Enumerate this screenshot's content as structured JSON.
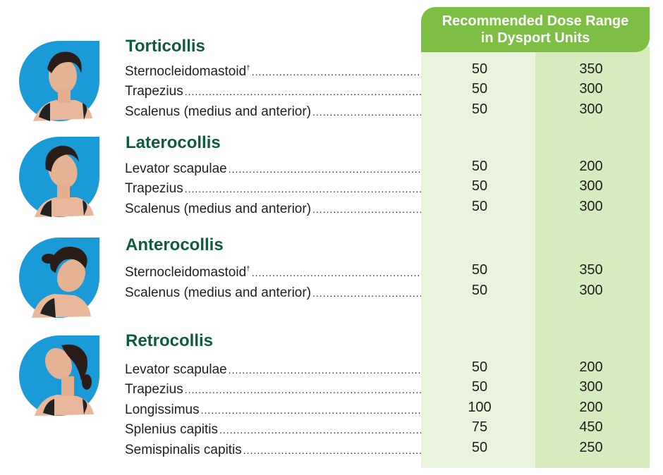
{
  "header": {
    "line1": "Recommended Dose Range",
    "line2": "in Dysport Units"
  },
  "sections": [
    {
      "title": "Torticollis",
      "rows": [
        {
          "muscle": "Sternocleidomastoid",
          "mark": "†",
          "min": "50",
          "max": "350"
        },
        {
          "muscle": "Trapezius",
          "min": "50",
          "max": "300"
        },
        {
          "muscle": "Scalenus (medius and anterior)",
          "min": "50",
          "max": "300"
        }
      ]
    },
    {
      "title": "Laterocollis",
      "rows": [
        {
          "muscle": "Levator scapulae ",
          "min": "50",
          "max": "200"
        },
        {
          "muscle": "Trapezius",
          "min": "50",
          "max": "300"
        },
        {
          "muscle": "Scalenus (medius and anterior) ",
          "min": "50",
          "max": "300"
        }
      ]
    },
    {
      "title": "Anterocollis",
      "rows": [
        {
          "muscle": "Sternocleidomastoid",
          "mark": "†",
          "min": "50",
          "max": "350"
        },
        {
          "muscle": "Scalenus (medius and anterior)",
          "min": "50",
          "max": "300"
        }
      ]
    },
    {
      "title": "Retrocollis",
      "rows": [
        {
          "muscle": "Levator scapulae ",
          "min": "50",
          "max": "200"
        },
        {
          "muscle": "Trapezius",
          "min": "50",
          "max": "300"
        },
        {
          "muscle": "Longissimus ",
          "min": "100",
          "max": "200"
        },
        {
          "muscle": "Splenius capitis",
          "min": "75",
          "max": "450"
        },
        {
          "muscle": "Semispinalis capitis ",
          "min": "50",
          "max": "250"
        }
      ]
    }
  ],
  "colors": {
    "header_green": "#7dbf45",
    "title_green": "#0f5c3c",
    "column_light": "#eaf4dc",
    "column_dark": "#d6ebbe",
    "portrait_blue": "#1a9ad6"
  },
  "icons": [
    "torticollis-portrait",
    "laterocollis-portrait",
    "anterocollis-portrait",
    "retrocollis-portrait"
  ]
}
